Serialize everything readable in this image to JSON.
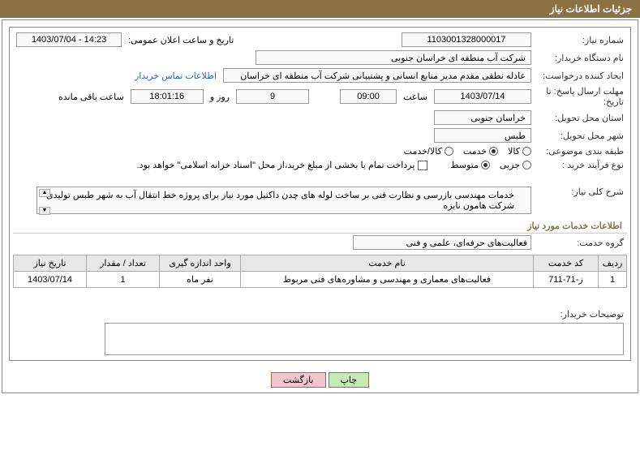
{
  "header": {
    "title": "جزئیات اطلاعات نیاز"
  },
  "req": {
    "number_label": "شماره نیاز:",
    "number": "1103001328000017",
    "announce_label": "تاریخ و ساعت اعلان عمومی:",
    "announce_value": "14:23 - 1403/07/04",
    "buyer_label": "نام دستگاه خریدار:",
    "buyer_value": "شرکت آب منطقه ای خراسان جنوبی",
    "creator_label": "ایجاد کننده درخواست:",
    "creator_value": "عادله نطقی مقدم مدیر منابع انسانی و پشتیبانی شرکت آب منطقه ای خراسان",
    "contact_link": "اطلاعات تماس خریدار",
    "deadline_label": "مهلت ارسال پاسخ: تا تاریخ:",
    "deadline_date": "1403/07/14",
    "time_label": "ساعت",
    "deadline_time": "09:00",
    "days_remain": "9",
    "days_and": "روز و",
    "hours_remain": "18:01:16",
    "hours_suffix": "ساعت باقی مانده",
    "province_label": "استان محل تحویل:",
    "province_value": "خراسان جنوبی",
    "city_label": "شهر محل تحویل:",
    "city_value": "طبس",
    "subject_class_label": "طبقه بندی موضوعی:",
    "radio_goods": "کالا",
    "radio_service": "خدمت",
    "radio_goods_service": "کالا/خدمت",
    "purchase_type_label": "نوع فرآیند خرید :",
    "radio_minor": "جزیی",
    "radio_medium": "متوسط",
    "pay_note": "پرداخت تمام یا بخشی از مبلغ خرید،از محل \"اسناد خزانه اسلامی\" خواهد بود.",
    "desc_label": "شرح کلی نیاز:",
    "desc_text": "خدمات مهندسی بازرسی و نظارت فنی بر ساخت لوله های چدن داکتیل مورد نیاز برای پروژه خط انتقال آب به شهر طبس تولیدی شرکت هامون نایزه",
    "services_section": "اطلاعات خدمات مورد نیاز",
    "service_group_label": "گروه خدمت:",
    "service_group_value": "فعالیت‌های حرفه‌ای، علمی و فنی",
    "remarks_label": "توضیحات خریدار:"
  },
  "table": {
    "columns": [
      "ردیف",
      "کد خدمت",
      "نام خدمت",
      "واحد اندازه گیری",
      "تعداد / مقدار",
      "تاریخ نیاز"
    ],
    "widths": [
      "35px",
      "80px",
      "auto",
      "100px",
      "90px",
      "90px"
    ],
    "rows": [
      [
        "1",
        "ز-71-711",
        "فعالیت‌های معماری و مهندسی و مشاوره‌های فنی مربوط",
        "نفر ماه",
        "1",
        "1403/07/14"
      ]
    ]
  },
  "buttons": {
    "print": "چاپ",
    "back": "بازگشت"
  },
  "style": {
    "header_bg": "#8a7244",
    "border": "#999999",
    "link_color": "#2962c9"
  }
}
